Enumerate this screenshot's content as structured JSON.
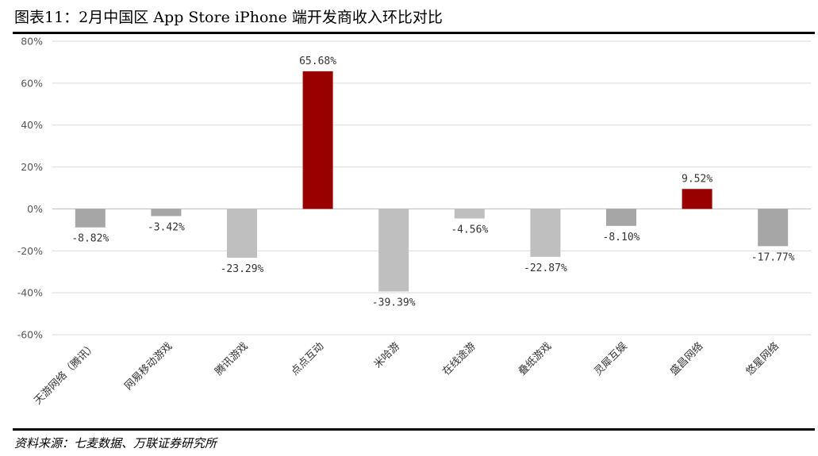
{
  "title": "图表11：2月中国区 App Store iPhone 端开发商收入环比对比",
  "source": "资料来源：七麦数据、万联证券研究所",
  "chart_data": {
    "type": "bar",
    "categories": [
      "天游网络（腾讯）",
      "网易移动游戏",
      "腾讯游戏",
      "点点互动",
      "米哈游",
      "在线途游",
      "叠纸游戏",
      "灵犀互娱",
      "盛昌网络",
      "悠星网络"
    ],
    "values": [
      -8.82,
      -3.42,
      -23.29,
      65.68,
      -39.39,
      -4.56,
      -22.87,
      -8.1,
      9.52,
      -17.77
    ],
    "data_labels": [
      "-8.82%",
      "-3.42%",
      "-23.29%",
      "65.68%",
      "-39.39%",
      "-4.56%",
      "-22.87%",
      "-8.10%",
      "9.52%",
      "-17.77%"
    ],
    "bar_colors": [
      "#a6a6a6",
      "#a6a6a6",
      "#bfbfbf",
      "#990000",
      "#bfbfbf",
      "#bfbfbf",
      "#bfbfbf",
      "#a6a6a6",
      "#990000",
      "#a6a6a6"
    ],
    "yticks": [
      80,
      60,
      40,
      20,
      0,
      -20,
      -40,
      -60
    ],
    "ytick_labels": [
      "80%",
      "60%",
      "40%",
      "20%",
      "0%",
      "-20%",
      "-40%",
      "-60%"
    ],
    "ylim": [
      -60,
      80
    ],
    "grid": true,
    "legend": "none",
    "xlabel": "",
    "ylabel": ""
  }
}
